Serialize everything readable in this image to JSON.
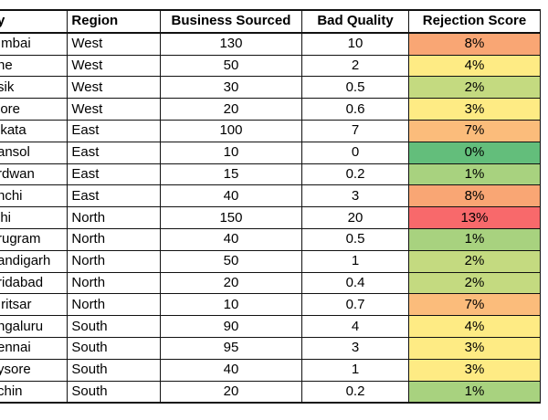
{
  "table": {
    "headers": {
      "city": "y",
      "region": "Region",
      "business": "Business Sourced",
      "bad": "Bad Quality",
      "score": "Rejection Score"
    },
    "colors": {
      "red": "#f8696b",
      "orange": "#f9a674",
      "orange_light": "#fbbc7b",
      "yellow": "#feeb84",
      "yellow_green": "#e0e283",
      "green_light": "#c4da80",
      "green": "#8ec97e",
      "green_dark": "#63be7b"
    },
    "rows": [
      {
        "city": "ımbai",
        "region": "West",
        "business": "130",
        "bad": "10",
        "score": "8%",
        "color": "#f9a674"
      },
      {
        "city": "ne",
        "region": "West",
        "business": "50",
        "bad": "2",
        "score": "4%",
        "color": "#feeb84"
      },
      {
        "city": "sik",
        "region": "West",
        "business": "30",
        "bad": "0.5",
        "score": "2%",
        "color": "#c4da80"
      },
      {
        "city": "lore",
        "region": "West",
        "business": "20",
        "bad": "0.6",
        "score": "3%",
        "color": "#feeb84"
      },
      {
        "city": "lkata",
        "region": "East",
        "business": "100",
        "bad": "7",
        "score": "7%",
        "color": "#fbbc7b"
      },
      {
        "city": "ansol",
        "region": "East",
        "business": "10",
        "bad": "0",
        "score": "0%",
        "color": "#63be7b"
      },
      {
        "city": "rdwan",
        "region": "East",
        "business": "15",
        "bad": "0.2",
        "score": "1%",
        "color": "#a8d27f"
      },
      {
        "city": "nchi",
        "region": "East",
        "business": "40",
        "bad": "3",
        "score": "8%",
        "color": "#f9a674"
      },
      {
        "city": "lhi",
        "region": "North",
        "business": "150",
        "bad": "20",
        "score": "13%",
        "color": "#f8696b"
      },
      {
        "city": "rugram",
        "region": "North",
        "business": "40",
        "bad": "0.5",
        "score": "1%",
        "color": "#a8d27f"
      },
      {
        "city": "andigarh",
        "region": "North",
        "business": "50",
        "bad": "1",
        "score": "2%",
        "color": "#c4da80"
      },
      {
        "city": "ridabad",
        "region": "North",
        "business": "20",
        "bad": "0.4",
        "score": "2%",
        "color": "#c4da80"
      },
      {
        "city": "ıritsar",
        "region": "North",
        "business": "10",
        "bad": "0.7",
        "score": "7%",
        "color": "#fbbc7b"
      },
      {
        "city": "ngaluru",
        "region": "South",
        "business": "90",
        "bad": "4",
        "score": "4%",
        "color": "#feeb84"
      },
      {
        "city": "ennai",
        "region": "South",
        "business": "95",
        "bad": "3",
        "score": "3%",
        "color": "#feeb84"
      },
      {
        "city": "ysore",
        "region": "South",
        "business": "40",
        "bad": "1",
        "score": "3%",
        "color": "#feeb84"
      },
      {
        "city": "chin",
        "region": "South",
        "business": "20",
        "bad": "0.2",
        "score": "1%",
        "color": "#a8d27f"
      }
    ]
  }
}
